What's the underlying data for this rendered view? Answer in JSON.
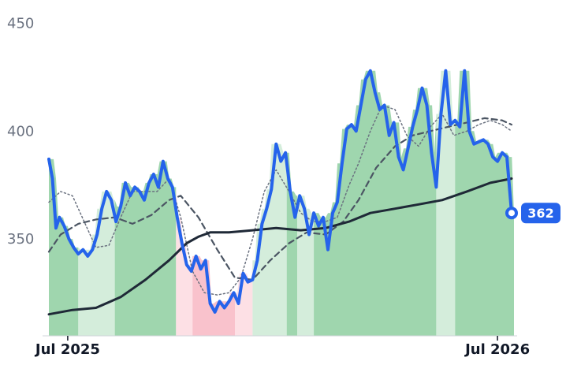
{
  "chart_data": {
    "type": "line",
    "xlim": [
      "2025-06-15",
      "2026-07-15"
    ],
    "ylim": [
      305,
      455
    ],
    "y_ticks": [
      350,
      400,
      450
    ],
    "y_tick_labels": [
      "350",
      "400",
      "450"
    ],
    "x_ticks": [
      "2025-07-01",
      "2026-07-01"
    ],
    "x_tick_labels": [
      "Jul 2025",
      "Jul 2026"
    ],
    "last_value_label": "362",
    "grid": false,
    "background_bands": [
      {
        "x0": "2025-06-15",
        "x1": "2025-07-10",
        "zone": "strong-up"
      },
      {
        "x0": "2025-07-10",
        "x1": "2025-08-10",
        "zone": "weak-up"
      },
      {
        "x0": "2025-08-10",
        "x1": "2025-10-01",
        "zone": "strong-up"
      },
      {
        "x0": "2025-10-01",
        "x1": "2025-10-15",
        "zone": "weak-down"
      },
      {
        "x0": "2025-10-15",
        "x1": "2025-11-20",
        "zone": "strong-down"
      },
      {
        "x0": "2025-11-20",
        "x1": "2025-12-05",
        "zone": "weak-down"
      },
      {
        "x0": "2025-12-05",
        "x1": "2026-01-03",
        "zone": "weak-up"
      },
      {
        "x0": "2026-01-03",
        "x1": "2026-01-12",
        "zone": "strong-up"
      },
      {
        "x0": "2026-01-12",
        "x1": "2026-01-26",
        "zone": "weak-up"
      },
      {
        "x0": "2026-01-26",
        "x1": "2026-05-10",
        "zone": "strong-up"
      },
      {
        "x0": "2026-05-10",
        "x1": "2026-05-26",
        "zone": "weak-up"
      },
      {
        "x0": "2026-05-26",
        "x1": "2026-07-15",
        "zone": "strong-up"
      }
    ],
    "series": [
      {
        "role": "price",
        "color": "#2563eb",
        "x": [
          "2025-06-15",
          "2025-06-18",
          "2025-06-21",
          "2025-06-24",
          "2025-06-28",
          "2025-07-02",
          "2025-07-06",
          "2025-07-10",
          "2025-07-14",
          "2025-07-18",
          "2025-07-22",
          "2025-07-26",
          "2025-07-30",
          "2025-08-03",
          "2025-08-07",
          "2025-08-11",
          "2025-08-15",
          "2025-08-19",
          "2025-08-23",
          "2025-08-27",
          "2025-08-31",
          "2025-09-04",
          "2025-09-08",
          "2025-09-12",
          "2025-09-16",
          "2025-09-20",
          "2025-09-24",
          "2025-09-28",
          "2025-10-02",
          "2025-10-06",
          "2025-10-10",
          "2025-10-14",
          "2025-10-18",
          "2025-10-22",
          "2025-10-26",
          "2025-10-30",
          "2025-11-03",
          "2025-11-07",
          "2025-11-11",
          "2025-11-15",
          "2025-11-19",
          "2025-11-23",
          "2025-11-27",
          "2025-12-01",
          "2025-12-05",
          "2025-12-09",
          "2025-12-13",
          "2025-12-17",
          "2025-12-21",
          "2025-12-25",
          "2025-12-29",
          "2026-01-02",
          "2026-01-06",
          "2026-01-10",
          "2026-01-14",
          "2026-01-18",
          "2026-01-22",
          "2026-01-26",
          "2026-01-30",
          "2026-02-03",
          "2026-02-07",
          "2026-02-11",
          "2026-02-15",
          "2026-02-19",
          "2026-02-23",
          "2026-02-27",
          "2026-03-03",
          "2026-03-07",
          "2026-03-11",
          "2026-03-15",
          "2026-03-19",
          "2026-03-23",
          "2026-03-27",
          "2026-03-31",
          "2026-04-04",
          "2026-04-08",
          "2026-04-12",
          "2026-04-16",
          "2026-04-20",
          "2026-04-24",
          "2026-04-28",
          "2026-05-02",
          "2026-05-06",
          "2026-05-10",
          "2026-05-14",
          "2026-05-18",
          "2026-05-22",
          "2026-05-26",
          "2026-05-30",
          "2026-06-03",
          "2026-06-07",
          "2026-06-11",
          "2026-06-15",
          "2026-06-19",
          "2026-06-23",
          "2026-06-27",
          "2026-07-01",
          "2026-07-05",
          "2026-07-09",
          "2026-07-13"
        ],
        "values": [
          387,
          378,
          355,
          360,
          356,
          350,
          346,
          343,
          345,
          342,
          345,
          352,
          364,
          372,
          368,
          358,
          365,
          376,
          370,
          374,
          372,
          368,
          376,
          380,
          374,
          386,
          378,
          374,
          360,
          348,
          338,
          335,
          342,
          336,
          340,
          320,
          316,
          321,
          318,
          321,
          325,
          320,
          334,
          330,
          331,
          340,
          357,
          364,
          373,
          394,
          386,
          390,
          372,
          360,
          370,
          364,
          352,
          362,
          356,
          360,
          345,
          362,
          367,
          385,
          401,
          403,
          400,
          412,
          424,
          428,
          418,
          410,
          412,
          398,
          404,
          388,
          382,
          392,
          402,
          410,
          420,
          412,
          390,
          374,
          408,
          428,
          403,
          405,
          402,
          428,
          400,
          394,
          395,
          396,
          394,
          388,
          386,
          390,
          388,
          362
        ]
      },
      {
        "role": "long-average",
        "color": "#1f2937",
        "x": [
          "2025-06-15",
          "2025-07-05",
          "2025-07-25",
          "2025-08-15",
          "2025-09-05",
          "2025-09-25",
          "2025-10-10",
          "2025-10-20",
          "2025-10-30",
          "2025-11-15",
          "2025-12-05",
          "2025-12-25",
          "2026-01-15",
          "2026-02-05",
          "2026-02-25",
          "2026-03-15",
          "2026-04-05",
          "2026-04-25",
          "2026-05-15",
          "2026-06-05",
          "2026-06-25",
          "2026-07-13"
        ],
        "values": [
          315,
          317,
          318,
          323,
          331,
          340,
          348,
          351,
          353,
          353,
          354,
          355,
          354,
          355,
          358,
          362,
          364,
          366,
          368,
          372,
          376,
          378
        ]
      },
      {
        "role": "medium-average",
        "color": "#4b5563",
        "dash": "7 5",
        "x": [
          "2025-06-15",
          "2025-06-25",
          "2025-07-10",
          "2025-07-25",
          "2025-08-10",
          "2025-08-25",
          "2025-09-10",
          "2025-09-25",
          "2025-10-05",
          "2025-10-20",
          "2025-11-05",
          "2025-11-20",
          "2025-12-05",
          "2025-12-20",
          "2026-01-05",
          "2026-01-20",
          "2026-02-05",
          "2026-02-20",
          "2026-03-05",
          "2026-03-20",
          "2026-04-05",
          "2026-04-20",
          "2026-05-05",
          "2026-05-20",
          "2026-06-05",
          "2026-06-20",
          "2026-07-05",
          "2026-07-13"
        ],
        "values": [
          344,
          352,
          357,
          359,
          360,
          357,
          361,
          368,
          370,
          360,
          345,
          332,
          331,
          340,
          348,
          353,
          352,
          358,
          368,
          383,
          393,
          398,
          400,
          402,
          404,
          406,
          405,
          403
        ]
      },
      {
        "role": "short-average",
        "color": "#6b7280",
        "dash": "2 3",
        "x": [
          "2025-06-15",
          "2025-06-25",
          "2025-07-05",
          "2025-07-15",
          "2025-07-25",
          "2025-08-05",
          "2025-08-15",
          "2025-08-25",
          "2025-09-05",
          "2025-09-15",
          "2025-09-25",
          "2025-10-05",
          "2025-10-15",
          "2025-10-25",
          "2025-11-05",
          "2025-11-15",
          "2025-11-25",
          "2025-12-05",
          "2025-12-15",
          "2025-12-25",
          "2026-01-05",
          "2026-01-15",
          "2026-01-25",
          "2026-02-05",
          "2026-02-15",
          "2026-02-25",
          "2026-03-05",
          "2026-03-15",
          "2026-03-25",
          "2026-04-05",
          "2026-04-15",
          "2026-04-25",
          "2026-05-05",
          "2026-05-15",
          "2026-05-25",
          "2026-06-05",
          "2026-06-15",
          "2026-06-25",
          "2026-07-05",
          "2026-07-13"
        ],
        "values": [
          367,
          372,
          370,
          358,
          346,
          347,
          360,
          372,
          372,
          372,
          378,
          360,
          335,
          325,
          324,
          325,
          332,
          350,
          372,
          382,
          372,
          362,
          358,
          358,
          360,
          375,
          385,
          400,
          412,
          410,
          398,
          393,
          402,
          408,
          398,
          400,
          403,
          405,
          403,
          400
        ]
      }
    ]
  },
  "colors": {
    "strong-up": "#9fd6ae",
    "weak-up": "#d4eddb",
    "strong-down": "#f9c2cc",
    "weak-down": "#fde0e5",
    "label_bg": "#2563eb"
  }
}
